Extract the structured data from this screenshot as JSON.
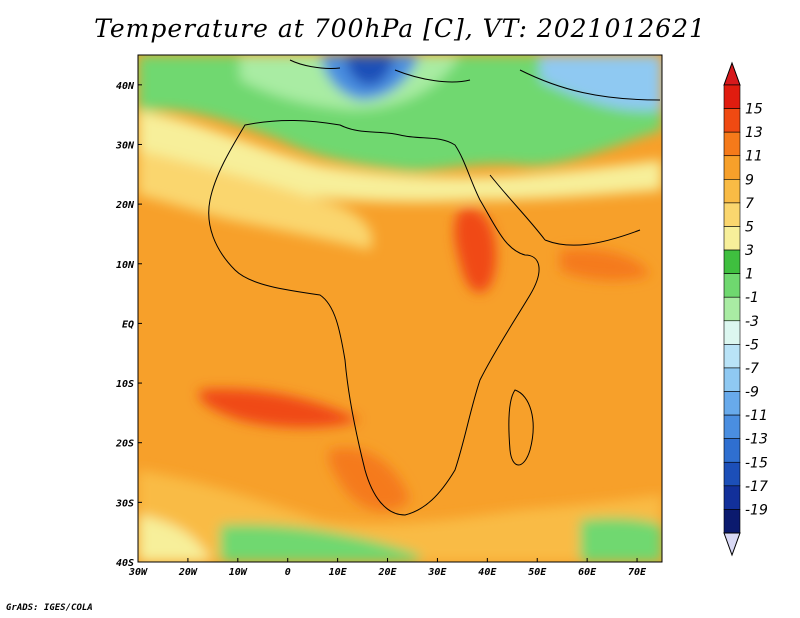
{
  "title": "Temperature at 700hPa [C], VT: 2021012621",
  "footer": "GrADS: IGES/COLA",
  "chart_data": {
    "type": "heatmap",
    "title": "Temperature at 700hPa [C], VT: 2021012621",
    "variable": "Temperature",
    "level": "700hPa",
    "units": "C",
    "valid_time": "2021012621",
    "lon_range": [
      -30,
      75
    ],
    "lat_range": [
      -40,
      45
    ],
    "x_ticks": [
      "30W",
      "20W",
      "10W",
      "0",
      "10E",
      "20E",
      "30E",
      "40E",
      "50E",
      "60E",
      "70E"
    ],
    "x_tick_values": [
      -30,
      -20,
      -10,
      0,
      10,
      20,
      30,
      40,
      50,
      60,
      70
    ],
    "y_ticks": [
      "40N",
      "30N",
      "20N",
      "10N",
      "EQ",
      "10S",
      "20S",
      "30S",
      "40S"
    ],
    "y_tick_values": [
      40,
      30,
      20,
      10,
      0,
      -10,
      -20,
      -30,
      -40
    ],
    "colorbar": {
      "labels": [
        "15",
        "13",
        "11",
        "9",
        "7",
        "5",
        "3",
        "1",
        "-1",
        "-3",
        "-5",
        "-7",
        "-9",
        "-11",
        "-13",
        "-15",
        "-17",
        "-19"
      ],
      "values": [
        15,
        13,
        11,
        9,
        7,
        5,
        3,
        1,
        -1,
        -3,
        -5,
        -7,
        -9,
        -11,
        -13,
        -15,
        -17,
        -19
      ],
      "colors": [
        "#e01c0f",
        "#f04a12",
        "#f57a1a",
        "#f7a02a",
        "#f9bb45",
        "#fad66e",
        "#f7ef9a",
        "#3fbf3f",
        "#6fd86f",
        "#a9eca3",
        "#dcf7f0",
        "#b9e3f7",
        "#8fc9f2",
        "#68aaeb",
        "#4a8ee0",
        "#2f6fd0",
        "#1c4fb8",
        "#12309a",
        "#0b1a6e"
      ],
      "top_triangle_color": "#d7191c",
      "bottom_triangle_color": "#d9d9f5"
    }
  }
}
